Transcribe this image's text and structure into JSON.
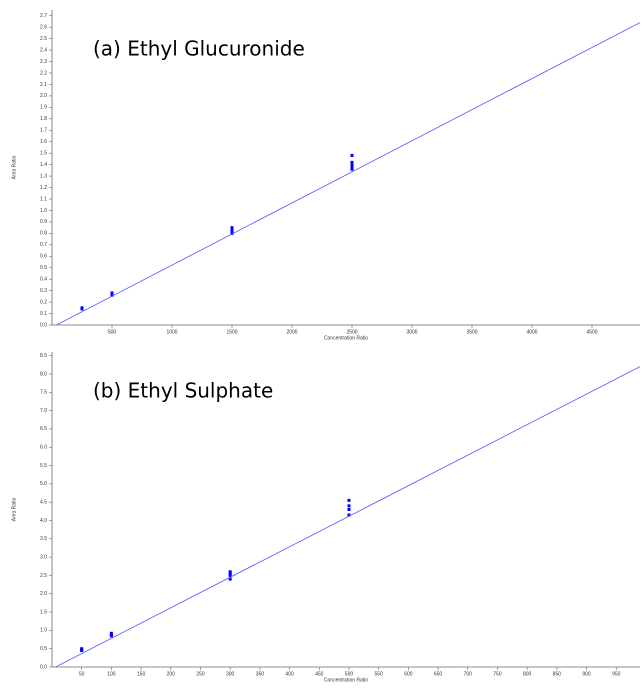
{
  "chart_data": [
    {
      "type": "scatter",
      "title": "(a) Ethyl Glucuronide",
      "xlabel": "Concentration Ratio",
      "ylabel": "Area Ratio",
      "xlim": [
        0,
        4900
      ],
      "ylim": [
        0,
        2.75
      ],
      "xticks": [
        500,
        1000,
        1500,
        2000,
        2500,
        3000,
        3500,
        4000,
        4500
      ],
      "yticks": [
        {
          "value": 0,
          "label": "0.0"
        },
        0.1,
        0.2,
        0.3,
        0.4,
        0.5,
        0.6,
        0.7,
        0.8,
        0.9,
        {
          "value": 1,
          "label": "1.0"
        },
        1.1,
        1.2,
        1.3,
        1.4,
        1.5,
        1.6,
        1.7,
        1.8,
        1.9,
        {
          "value": 2,
          "label": "2.0"
        },
        2.1,
        2.2,
        2.3,
        2.4,
        2.5,
        2.6,
        2.7
      ],
      "series": [
        {
          "type": "scatter",
          "color": "#0000ff",
          "x": [
            250,
            250,
            250,
            500,
            500,
            500,
            1500,
            1500,
            1500,
            1500,
            2500,
            2500,
            2500,
            2500,
            2500
          ],
          "values": [
            0.14,
            0.145,
            0.15,
            0.26,
            0.27,
            0.28,
            0.8,
            0.82,
            0.83,
            0.85,
            1.36,
            1.38,
            1.4,
            1.42,
            1.48
          ]
        },
        {
          "type": "line",
          "color": "#5555ff",
          "x": [
            0,
            4900
          ],
          "values": [
            -0.02,
            2.64
          ]
        }
      ]
    },
    {
      "type": "scatter",
      "title": "(b) Ethyl Sulphate",
      "xlabel": "Concentration Ratio",
      "ylabel": "Area Ratio",
      "xlim": [
        0,
        990
      ],
      "ylim": [
        0,
        8.6
      ],
      "xticks": [
        50,
        100,
        150,
        200,
        250,
        300,
        350,
        400,
        450,
        500,
        550,
        600,
        650,
        700,
        750,
        800,
        850,
        900,
        950
      ],
      "yticks": [
        {
          "value": 0,
          "label": "0.0"
        },
        0.5,
        {
          "value": 1,
          "label": "1.0"
        },
        1.5,
        {
          "value": 2,
          "label": "2.0"
        },
        2.5,
        {
          "value": 3,
          "label": "3.0"
        },
        3.5,
        {
          "value": 4,
          "label": "4.0"
        },
        4.5,
        {
          "value": 5,
          "label": "5.0"
        },
        5.5,
        {
          "value": 6,
          "label": "6.0"
        },
        6.5,
        {
          "value": 7,
          "label": "7.0"
        },
        7.5,
        {
          "value": 8,
          "label": "8.0"
        },
        8.5
      ],
      "series": [
        {
          "type": "scatter",
          "color": "#0000ff",
          "x": [
            50,
            50,
            50,
            100,
            100,
            100,
            300,
            300,
            300,
            300,
            500,
            500,
            500,
            500
          ],
          "values": [
            0.45,
            0.48,
            0.5,
            0.85,
            0.88,
            0.92,
            2.4,
            2.5,
            2.55,
            2.6,
            4.15,
            4.3,
            4.4,
            4.55
          ]
        },
        {
          "type": "line",
          "color": "#5555ff",
          "x": [
            0,
            990
          ],
          "values": [
            -0.05,
            8.2
          ]
        }
      ]
    }
  ]
}
